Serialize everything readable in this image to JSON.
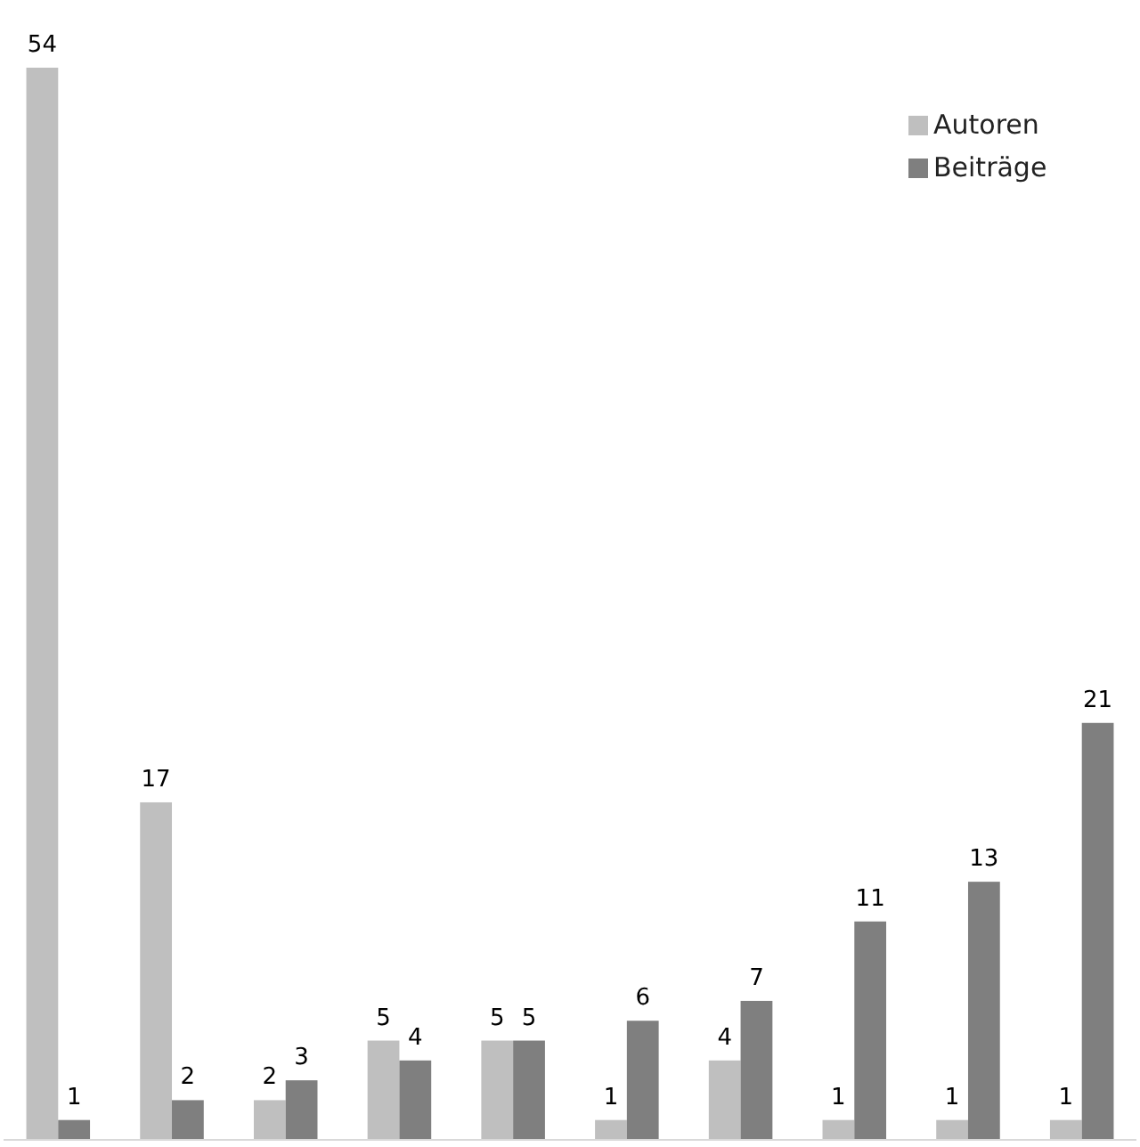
{
  "chart_data": {
    "type": "bar",
    "categories": [
      null,
      null,
      null,
      null,
      null,
      null,
      null,
      null,
      null,
      null
    ],
    "series": [
      {
        "name": "Autoren",
        "color": "#bfbfbf",
        "values": [
          54,
          17,
          2,
          5,
          5,
          1,
          4,
          1,
          1,
          1
        ]
      },
      {
        "name": "Beiträge",
        "color": "#7f7f7f",
        "values": [
          1,
          2,
          3,
          4,
          5,
          6,
          7,
          11,
          13,
          21
        ]
      }
    ],
    "data_labels": true,
    "legend": "top right"
  }
}
